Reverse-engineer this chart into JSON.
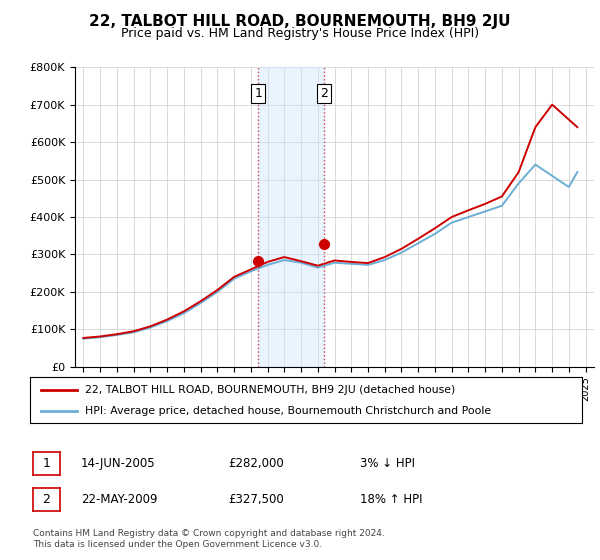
{
  "title": "22, TALBOT HILL ROAD, BOURNEMOUTH, BH9 2JU",
  "subtitle": "Price paid vs. HM Land Registry's House Price Index (HPI)",
  "ylabel_ticks": [
    "£0",
    "£100K",
    "£200K",
    "£300K",
    "£400K",
    "£500K",
    "£600K",
    "£700K",
    "£800K"
  ],
  "ytick_values": [
    0,
    100000,
    200000,
    300000,
    400000,
    500000,
    600000,
    700000,
    800000
  ],
  "ylim": [
    0,
    800000
  ],
  "hpi_color": "#6baed6",
  "price_color": "#cc0000",
  "marker_color": "#cc0000",
  "vline_color": "#cc0000",
  "shade_color": "#cce5ff",
  "shade_alpha": 0.4,
  "transaction1_year": 2005.45,
  "transaction1_price": 282000,
  "transaction2_year": 2009.38,
  "transaction2_price": 327500,
  "legend_line1": "22, TALBOT HILL ROAD, BOURNEMOUTH, BH9 2JU (detached house)",
  "legend_line2": "HPI: Average price, detached house, Bournemouth Christchurch and Poole",
  "table_row1_num": "1",
  "table_row1_date": "14-JUN-2005",
  "table_row1_price": "£282,000",
  "table_row1_hpi": "3% ↓ HPI",
  "table_row2_num": "2",
  "table_row2_date": "22-MAY-2009",
  "table_row2_price": "£327,500",
  "table_row2_hpi": "18% ↑ HPI",
  "footnote1": "Contains HM Land Registry data © Crown copyright and database right 2024.",
  "footnote2": "This data is licensed under the Open Government Licence v3.0.",
  "background_color": "#ffffff",
  "grid_color": "#cccccc"
}
